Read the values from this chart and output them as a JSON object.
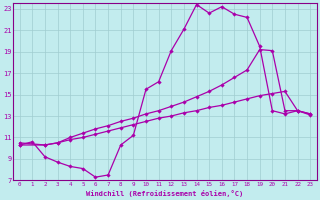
{
  "xlabel": "Windchill (Refroidissement éolien,°C)",
  "bg_color": "#c2ecee",
  "grid_color": "#a0cdd0",
  "line_color": "#aa00aa",
  "spine_color": "#880088",
  "xlim": [
    -0.5,
    23.5
  ],
  "ylim": [
    7,
    23.5
  ],
  "xticks": [
    0,
    1,
    2,
    3,
    4,
    5,
    6,
    7,
    8,
    9,
    10,
    11,
    12,
    13,
    14,
    15,
    16,
    17,
    18,
    19,
    20,
    21,
    22,
    23
  ],
  "yticks": [
    7,
    9,
    11,
    13,
    15,
    17,
    19,
    21,
    23
  ],
  "line1_x": [
    0,
    1,
    2,
    3,
    4,
    5,
    6,
    7,
    8,
    9,
    10,
    11,
    12,
    13,
    14,
    15,
    16,
    17,
    18,
    19,
    20,
    21,
    22,
    23
  ],
  "line1_y": [
    10.3,
    10.6,
    9.2,
    8.7,
    8.3,
    8.1,
    7.3,
    7.5,
    10.3,
    11.2,
    15.5,
    16.2,
    19.1,
    21.1,
    23.4,
    22.6,
    23.2,
    22.5,
    22.2,
    19.5,
    13.5,
    13.2,
    13.5,
    13.1
  ],
  "line2_x": [
    0,
    2,
    3,
    4,
    5,
    6,
    7,
    8,
    9,
    10,
    11,
    12,
    13,
    14,
    15,
    16,
    17,
    18,
    19,
    20,
    21,
    22,
    23
  ],
  "line2_y": [
    10.5,
    10.3,
    10.5,
    11.0,
    11.4,
    11.8,
    12.1,
    12.5,
    12.8,
    13.2,
    13.5,
    13.9,
    14.3,
    14.8,
    15.3,
    15.9,
    16.6,
    17.3,
    19.2,
    19.1,
    13.5,
    13.5,
    13.2
  ],
  "line3_x": [
    0,
    2,
    3,
    4,
    5,
    6,
    7,
    8,
    9,
    10,
    11,
    12,
    13,
    14,
    15,
    16,
    17,
    18,
    19,
    20,
    21,
    22,
    23
  ],
  "line3_y": [
    10.3,
    10.3,
    10.5,
    10.8,
    11.0,
    11.3,
    11.6,
    11.9,
    12.2,
    12.5,
    12.8,
    13.0,
    13.3,
    13.5,
    13.8,
    14.0,
    14.3,
    14.6,
    14.9,
    15.1,
    15.3,
    13.5,
    13.2
  ]
}
